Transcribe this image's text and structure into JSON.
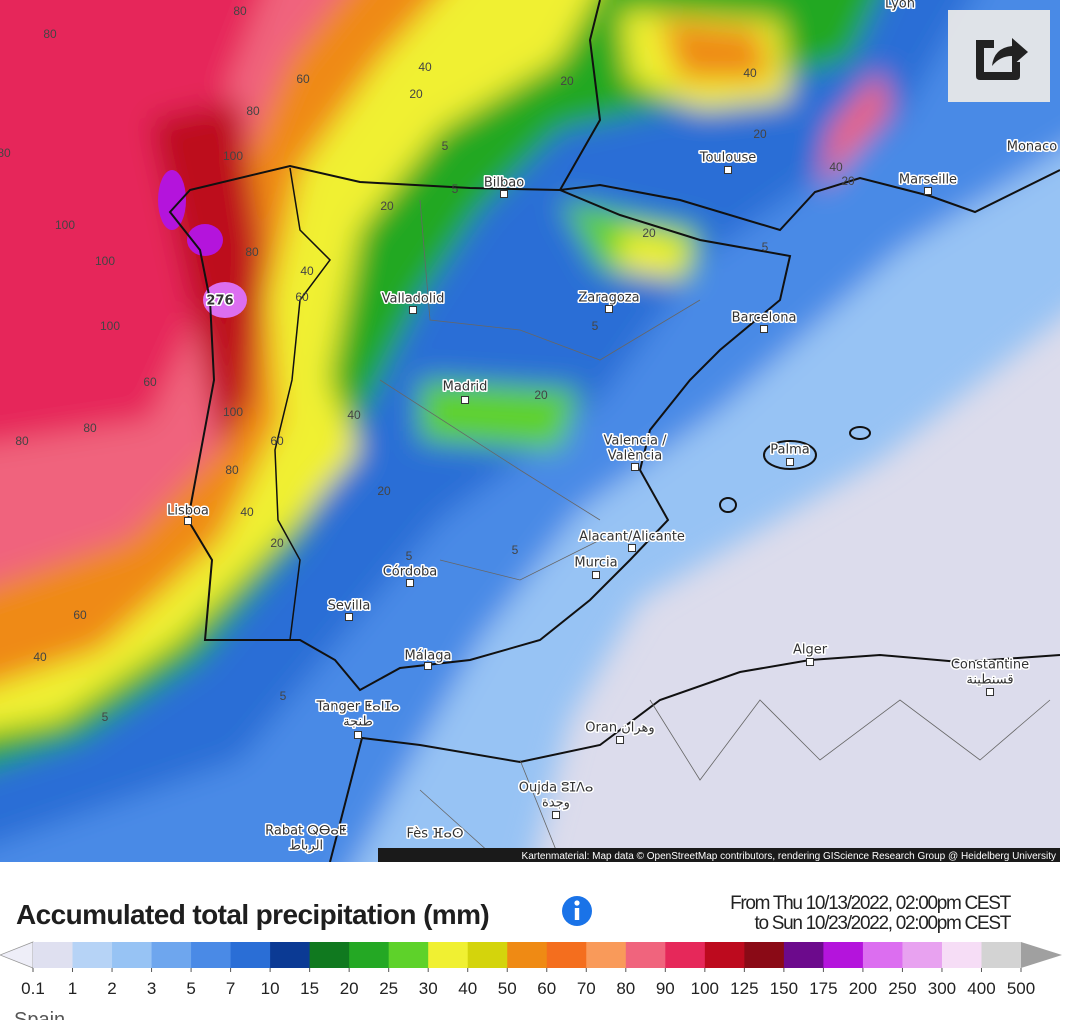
{
  "map": {
    "cities": [
      [
        "Lyon"
      ],
      [
        "Toulouse"
      ],
      [
        "Monaco"
      ],
      [
        "Marseille"
      ],
      [
        "Bilbao"
      ],
      [
        "Valladolid"
      ],
      [
        "Zaragoza"
      ],
      [
        "Barcelona"
      ],
      [
        "Madrid"
      ],
      [
        "Valencia /",
        "València"
      ],
      [
        "Palma"
      ],
      [
        "Lisboa"
      ],
      [
        "Alacant/Alicante"
      ],
      [
        "Murcia"
      ],
      [
        "Córdoba"
      ],
      [
        "Sevilla"
      ],
      [
        "Málaga"
      ],
      [
        "Alger"
      ],
      [
        "Constantine",
        "قسنطينة"
      ],
      [
        "Tanger ⵟⴰⵏⵊⴰ",
        "طنجة"
      ],
      [
        "Oran وهران"
      ],
      [
        "Oujda ⵓⵊⴷⴰ",
        "وجدة"
      ],
      [
        "Rabat ⵕⴱⴰⵟ",
        "الرباط"
      ],
      [
        "Fès ⴼⴰⵙ"
      ]
    ],
    "contour_labels": [
      "80",
      "80",
      "60",
      "40",
      "20",
      "20",
      "40",
      "20",
      "40",
      "20",
      "80",
      "100",
      "80",
      "100",
      "100",
      "276",
      "80",
      "40",
      "60",
      "20",
      "20",
      "5",
      "5",
      "5",
      "5",
      "100",
      "60",
      "80",
      "80",
      "100",
      "80",
      "60",
      "40",
      "20",
      "20",
      "40",
      "20",
      "60",
      "40",
      "5",
      "5",
      "5",
      "5"
    ],
    "attribution": "Kartenmaterial: Map data © OpenStreetMap contributors, rendering GIScience Research Group @ Heidelberg University"
  },
  "title": "Accumulated total precipitation (mm)",
  "period": [
    "From Thu 10/13/2022, 02:00pm CEST",
    "to Sun 10/23/2022, 02:00pm CEST"
  ],
  "legend": {
    "ticks": [
      0.1,
      1,
      2,
      3,
      5,
      7,
      10,
      15,
      20,
      25,
      30,
      40,
      50,
      60,
      70,
      80,
      90,
      100,
      125,
      150,
      175,
      200,
      250,
      300,
      400,
      500
    ],
    "colors": [
      "#dfe0f0",
      "#b6d3f6",
      "#97c3f4",
      "#6ea6ee",
      "#4a8ae6",
      "#2a6ed6",
      "#0b3a94",
      "#10791f",
      "#24a824",
      "#5ed22a",
      "#f0f032",
      "#d4d40c",
      "#ef8a14",
      "#f46e1e",
      "#f99a5a",
      "#f0647d",
      "#e6285a",
      "#bd0a1e",
      "#8a0a16",
      "#6c0a8c",
      "#b414dc",
      "#dc6ef0",
      "#e8a2f0",
      "#f6ddf6",
      "#d3d3d3"
    ],
    "under_color": "#eeeef8",
    "over_color": "#a0a0a0"
  },
  "footer": "Spain"
}
